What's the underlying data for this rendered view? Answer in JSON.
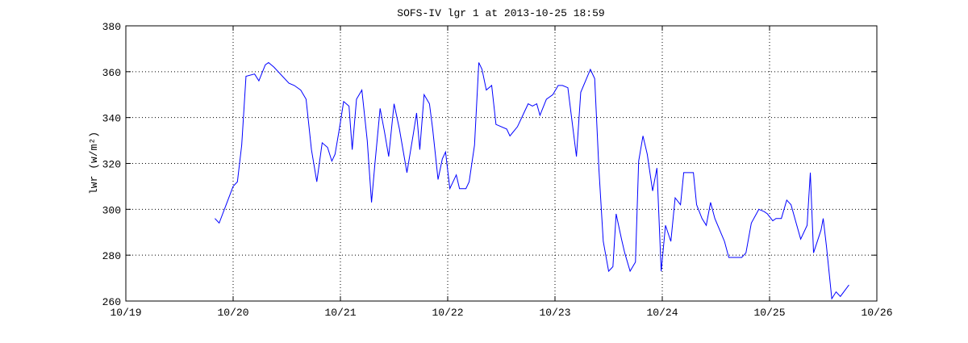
{
  "chart_data": {
    "type": "line",
    "title": "SOFS-IV lgr 1 at 2013-10-25 18:59",
    "y_label": "lwr (w/m²)",
    "x": [
      19.83,
      19.87,
      20.0,
      20.04,
      20.08,
      20.12,
      20.2,
      20.24,
      20.3,
      20.33,
      20.38,
      20.52,
      20.57,
      20.63,
      20.68,
      20.73,
      20.78,
      20.83,
      20.88,
      20.92,
      20.95,
      20.99,
      21.03,
      21.08,
      21.11,
      21.15,
      21.2,
      21.25,
      21.29,
      21.32,
      21.37,
      21.41,
      21.45,
      21.5,
      21.55,
      21.62,
      21.68,
      21.71,
      21.74,
      21.78,
      21.83,
      21.86,
      21.91,
      21.95,
      21.98,
      22.02,
      22.08,
      22.11,
      22.17,
      22.2,
      22.25,
      22.29,
      22.32,
      22.36,
      22.41,
      22.45,
      22.55,
      22.58,
      22.65,
      22.71,
      22.75,
      22.79,
      22.83,
      22.86,
      22.92,
      22.98,
      23.03,
      23.07,
      23.12,
      23.2,
      23.24,
      23.33,
      23.37,
      23.41,
      23.45,
      23.5,
      23.54,
      23.57,
      23.62,
      23.65,
      23.7,
      23.75,
      23.78,
      23.82,
      23.86,
      23.91,
      23.95,
      23.99,
      24.03,
      24.08,
      24.12,
      24.17,
      24.2,
      24.24,
      24.29,
      24.32,
      24.37,
      24.41,
      24.45,
      24.49,
      24.58,
      24.62,
      24.66,
      24.69,
      24.74,
      24.78,
      24.83,
      24.9,
      24.95,
      24.98,
      25.03,
      25.06,
      25.11,
      25.16,
      25.2,
      25.29,
      25.35,
      25.38,
      25.41,
      25.48,
      25.5,
      25.53,
      25.58,
      25.62,
      25.66,
      25.74
    ],
    "series": [
      {
        "name": "lwr",
        "color": "#0000ff",
        "values": [
          296,
          294,
          310,
          312,
          328,
          358,
          359,
          356,
          363,
          364,
          362,
          355,
          354,
          352,
          348,
          326,
          312,
          329,
          327,
          321,
          324,
          335,
          347,
          345,
          326,
          348,
          352,
          330,
          303,
          319,
          344,
          334,
          323,
          346,
          335,
          316,
          333,
          342,
          326,
          350,
          346,
          335,
          313,
          322,
          325,
          309,
          315,
          309,
          309,
          312,
          328,
          364,
          361,
          352,
          354,
          337,
          335,
          332,
          336,
          342,
          346,
          345,
          346,
          341,
          348,
          350,
          354,
          354,
          353,
          323,
          351,
          361,
          357,
          317,
          286,
          273,
          275,
          298,
          287,
          281,
          273,
          277,
          321,
          332,
          324,
          308,
          318,
          273,
          293,
          286,
          305,
          302,
          316,
          316,
          316,
          302,
          296,
          293,
          303,
          296,
          286,
          279,
          279,
          279,
          279,
          281,
          294,
          300,
          299,
          298,
          295,
          296,
          296,
          304,
          302,
          287,
          293,
          316,
          281,
          291,
          296,
          284,
          261,
          264,
          262,
          267
        ]
      }
    ],
    "xlim": [
      19,
      26
    ],
    "xticks": [
      {
        "value": 19,
        "label": "10/19"
      },
      {
        "value": 20,
        "label": "10/20"
      },
      {
        "value": 21,
        "label": "10/21"
      },
      {
        "value": 22,
        "label": "10/22"
      },
      {
        "value": 23,
        "label": "10/23"
      },
      {
        "value": 24,
        "label": "10/24"
      },
      {
        "value": 25,
        "label": "10/25"
      },
      {
        "value": 26,
        "label": "10/26"
      }
    ],
    "ylim": [
      260,
      380
    ],
    "yticks": [
      260,
      280,
      300,
      320,
      340,
      360,
      380
    ],
    "grid": true
  }
}
